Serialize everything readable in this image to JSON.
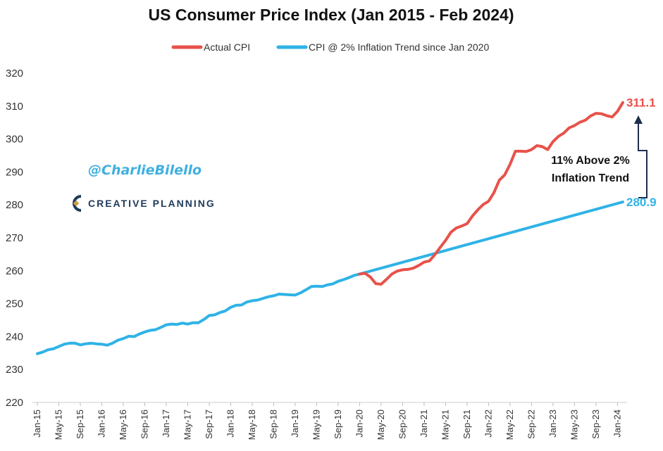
{
  "chart_data": {
    "type": "line",
    "title": "US Consumer Price Index (Jan 2015 - Feb 2024)",
    "ylim": [
      220,
      320
    ],
    "y_ticks": [
      "220",
      "230",
      "240",
      "250",
      "260",
      "270",
      "280",
      "290",
      "300",
      "310",
      "320"
    ],
    "x_ticks": [
      "Jan-15",
      "May-15",
      "Sep-15",
      "Jan-16",
      "May-16",
      "Sep-16",
      "Jan-17",
      "May-17",
      "Sep-17",
      "Jan-18",
      "May-18",
      "Sep-18",
      "Jan-19",
      "May-19",
      "Sep-19",
      "Jan-20",
      "May-20",
      "Sep-20",
      "Jan-21",
      "May-21",
      "Sep-21",
      "Jan-22",
      "May-22",
      "Sep-22",
      "Jan-23",
      "May-23",
      "Sep-23",
      "Jan-24"
    ],
    "grid": false,
    "legend_position": "top",
    "series": [
      {
        "name": "Actual CPI",
        "color": "#e8524a",
        "x": [
          "Jan-20",
          "Feb-20",
          "Mar-20",
          "Apr-20",
          "May-20",
          "Jun-20",
          "Jul-20",
          "Aug-20",
          "Sep-20",
          "Oct-20",
          "Nov-20",
          "Dec-20",
          "Jan-21",
          "Feb-21",
          "Mar-21",
          "Apr-21",
          "May-21",
          "Jun-21",
          "Jul-21",
          "Aug-21",
          "Sep-21",
          "Oct-21",
          "Nov-21",
          "Dec-21",
          "Jan-22",
          "Feb-22",
          "Mar-22",
          "Apr-22",
          "May-22",
          "Jun-22",
          "Jul-22",
          "Aug-22",
          "Sep-22",
          "Oct-22",
          "Nov-22",
          "Dec-22",
          "Jan-23",
          "Feb-23",
          "Mar-23",
          "Apr-23",
          "May-23",
          "Jun-23",
          "Jul-23",
          "Aug-23",
          "Sep-23",
          "Oct-23",
          "Nov-23",
          "Dec-23",
          "Jan-24",
          "Feb-24"
        ],
        "values": [
          259.0,
          259.2,
          258.1,
          256.1,
          255.9,
          257.4,
          259.0,
          259.9,
          260.3,
          260.4,
          260.8,
          261.6,
          262.6,
          263.0,
          264.9,
          267.1,
          269.2,
          271.7,
          273.0,
          273.6,
          274.3,
          276.6,
          278.5,
          280.1,
          281.1,
          283.7,
          287.5,
          289.1,
          292.3,
          296.3,
          296.3,
          296.2,
          296.8,
          298.0,
          297.7,
          296.8,
          299.2,
          300.8,
          301.8,
          303.4,
          304.1,
          305.1,
          305.7,
          307.0,
          307.8,
          307.7,
          307.1,
          306.7,
          308.4,
          311.1
        ]
      },
      {
        "name": "CPI @ 2% Inflation Trend since Jan 2020",
        "color": "#2fb3e6",
        "x": [
          "Jan-15",
          "Feb-15",
          "Mar-15",
          "Apr-15",
          "May-15",
          "Jun-15",
          "Jul-15",
          "Aug-15",
          "Sep-15",
          "Oct-15",
          "Nov-15",
          "Dec-15",
          "Jan-16",
          "Feb-16",
          "Mar-16",
          "Apr-16",
          "May-16",
          "Jun-16",
          "Jul-16",
          "Aug-16",
          "Sep-16",
          "Oct-16",
          "Nov-16",
          "Dec-16",
          "Jan-17",
          "Feb-17",
          "Mar-17",
          "Apr-17",
          "May-17",
          "Jun-17",
          "Jul-17",
          "Aug-17",
          "Sep-17",
          "Oct-17",
          "Nov-17",
          "Dec-17",
          "Jan-18",
          "Feb-18",
          "Mar-18",
          "Apr-18",
          "May-18",
          "Jun-18",
          "Jul-18",
          "Aug-18",
          "Sep-18",
          "Oct-18",
          "Nov-18",
          "Dec-18",
          "Jan-19",
          "Feb-19",
          "Mar-19",
          "Apr-19",
          "May-19",
          "Jun-19",
          "Jul-19",
          "Aug-19",
          "Sep-19",
          "Oct-19",
          "Nov-19",
          "Dec-19",
          "Jan-20",
          "Feb-24"
        ],
        "values": [
          234.8,
          235.3,
          236.0,
          236.3,
          237.0,
          237.7,
          238.0,
          238.0,
          237.5,
          237.8,
          238.0,
          237.8,
          237.7,
          237.4,
          238.0,
          238.9,
          239.4,
          240.1,
          240.0,
          240.8,
          241.4,
          241.9,
          242.1,
          242.8,
          243.6,
          243.8,
          243.7,
          244.1,
          243.8,
          244.2,
          244.2,
          245.2,
          246.4,
          246.6,
          247.3,
          247.8,
          248.9,
          249.5,
          249.6,
          250.5,
          250.9,
          251.1,
          251.6,
          252.1,
          252.4,
          252.9,
          252.8,
          252.7,
          252.6,
          253.3,
          254.2,
          255.2,
          255.3,
          255.2,
          255.7,
          256.0,
          256.8,
          257.3,
          257.9,
          258.6,
          259.0,
          280.9
        ]
      }
    ],
    "end_labels": {
      "actual": "311.1",
      "trend": "280.9"
    },
    "annotation": {
      "line1": "11% Above 2%",
      "line2": "Inflation Trend"
    }
  },
  "watermark": {
    "handle": "@CharlieBilello",
    "company": "CREATIVE PLANNING"
  }
}
